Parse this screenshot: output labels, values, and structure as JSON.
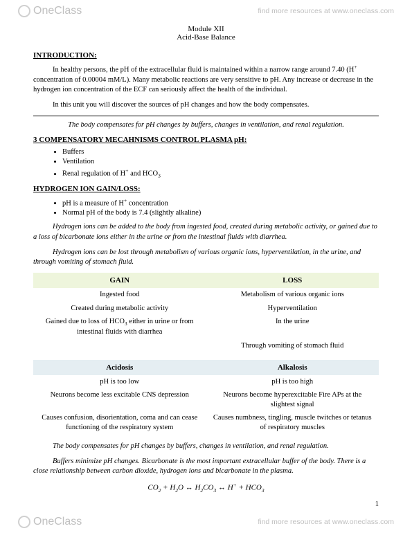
{
  "brand": {
    "name": "OneClass",
    "tagline": "find more resources at www.oneclass.com"
  },
  "header": {
    "module": "Module XII",
    "topic": "Acid-Base Balance"
  },
  "intro": {
    "heading": "INTRODUCTION",
    "p1_a": "In healthy persons, the pH of the extracellular fluid is maintained within a narrow range around 7.40 (H",
    "p1_b": " concentration of 0.00004 mM/L). Many metabolic reactions are very sensitive to pH. Any increase or decrease in the hydrogen ion concentration of the ECF can seriously affect the health of the individual.",
    "p2": "In this unit you will discover the sources of pH changes and how the body compensates.",
    "summary": "The body compensates for pH changes by buffers, changes in ventilation, and renal regulation."
  },
  "mechanisms": {
    "heading": "3 COMPENSATORY MECAHNISMS CONTROL PLASMA pH",
    "items": [
      "Buffers",
      "Ventilation"
    ],
    "item3_a": "Renal regulation of H",
    "item3_b": " and HCO"
  },
  "hloss": {
    "heading": "HYDROGEN ION GAIN/LOSS",
    "item1_a": "pH is a measure of H",
    "item1_b": " concentration",
    "item2": "Normal pH of the body is 7.4 (slightly alkaline)",
    "gain_note": "Hydrogen ions can be added to the body from ingested food, created during metabolic activity, or gained due to a loss of bicarbonate ions either in the urine or from the intestinal fluids with diarrhea.",
    "loss_note": "Hydrogen ions can be lost through metabolism of various organic ions, hyperventilation, in the urine, and through vomiting of stomach fluid."
  },
  "table1": {
    "header_bg": "#eef5dc",
    "cols": [
      "GAIN",
      "LOSS"
    ],
    "rows": [
      [
        "Ingested food",
        "Metabolism of various organic ions"
      ],
      [
        "Created during metabolic activity",
        "Hyperventilation"
      ]
    ],
    "row3_left_a": "Gained due to loss of HCO",
    "row3_left_b": " either in urine or from intestinal fluids with diarrhea",
    "row3_right": "In the urine",
    "row4_right": "Through vomiting of stomach fluid"
  },
  "table2": {
    "header_bg": "#e5eef2",
    "cols": [
      "Acidosis",
      "Alkalosis"
    ],
    "rows": [
      [
        "pH is too low",
        "pH is too high"
      ],
      [
        "Neurons become less excitable  CNS depression",
        "Neurons become hyperexcitable  Fire APs at the slightest signal"
      ],
      [
        "Causes confusion, disorientation, coma and can cease functioning of the respiratory system",
        "Causes numbness, tingling, muscle twitches or tetanus of respiratory muscles"
      ]
    ]
  },
  "closing": {
    "summary": "The body compensates for pH changes by buffers, changes in ventilation, and renal regulation.",
    "buffers": "Buffers minimize pH changes. Bicarbonate is the most important extracellular buffer of the body. There is a close relationship between carbon dioxide, hydrogen ions and bicarbonate in the plasma."
  },
  "page_number": "1"
}
